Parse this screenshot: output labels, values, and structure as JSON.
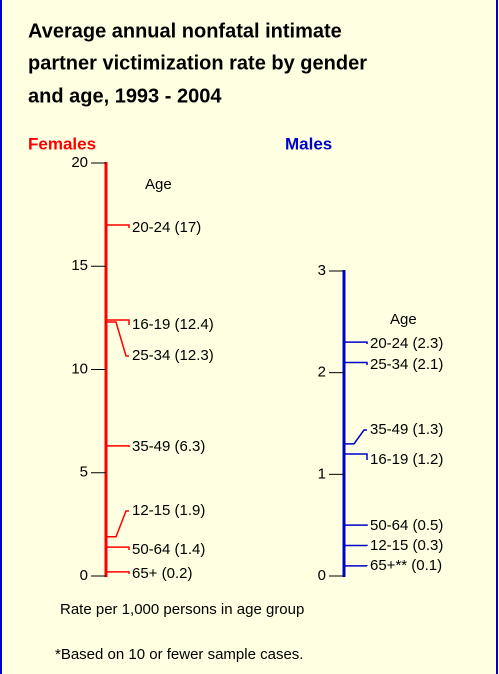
{
  "title_lines": [
    "Average annual nonfatal intimate",
    "partner victimization rate by gender",
    "and age, 1993 - 2004"
  ],
  "notes": [
    "Rate per 1,000 persons in age group",
    "*Based on 10 or fewer sample cases."
  ],
  "chart_data": [
    {
      "type": "scale",
      "title": "Females",
      "color": "#ff0000",
      "axis_label": "Age",
      "ylim": [
        0,
        20
      ],
      "yticks": [
        0,
        5,
        10,
        15,
        20
      ],
      "values": [
        17,
        12.4,
        12.3,
        6.3,
        1.9,
        1.4,
        0.2
      ],
      "value_labels": [
        "20-24 (17)",
        "16-19 (12.4)",
        "25-34 (12.3)",
        "35-49 (6.3)",
        "12-15 (1.9)",
        "50-64 (1.4)",
        "65+ (0.2)"
      ]
    },
    {
      "type": "scale",
      "title": "Males",
      "color": "#0000cc",
      "axis_label": "Age",
      "ylim": [
        0,
        3
      ],
      "yticks": [
        0,
        1,
        2,
        3
      ],
      "values": [
        2.3,
        2.1,
        1.3,
        1.2,
        0.5,
        0.3,
        0.1
      ],
      "value_labels": [
        "20-24 (2.3)",
        "25-34 (2.1)",
        "35-49 (1.3)",
        "16-19 (1.2)",
        "50-64 (0.5)",
        "12-15 (0.3)",
        "65+** (0.1)"
      ]
    }
  ]
}
